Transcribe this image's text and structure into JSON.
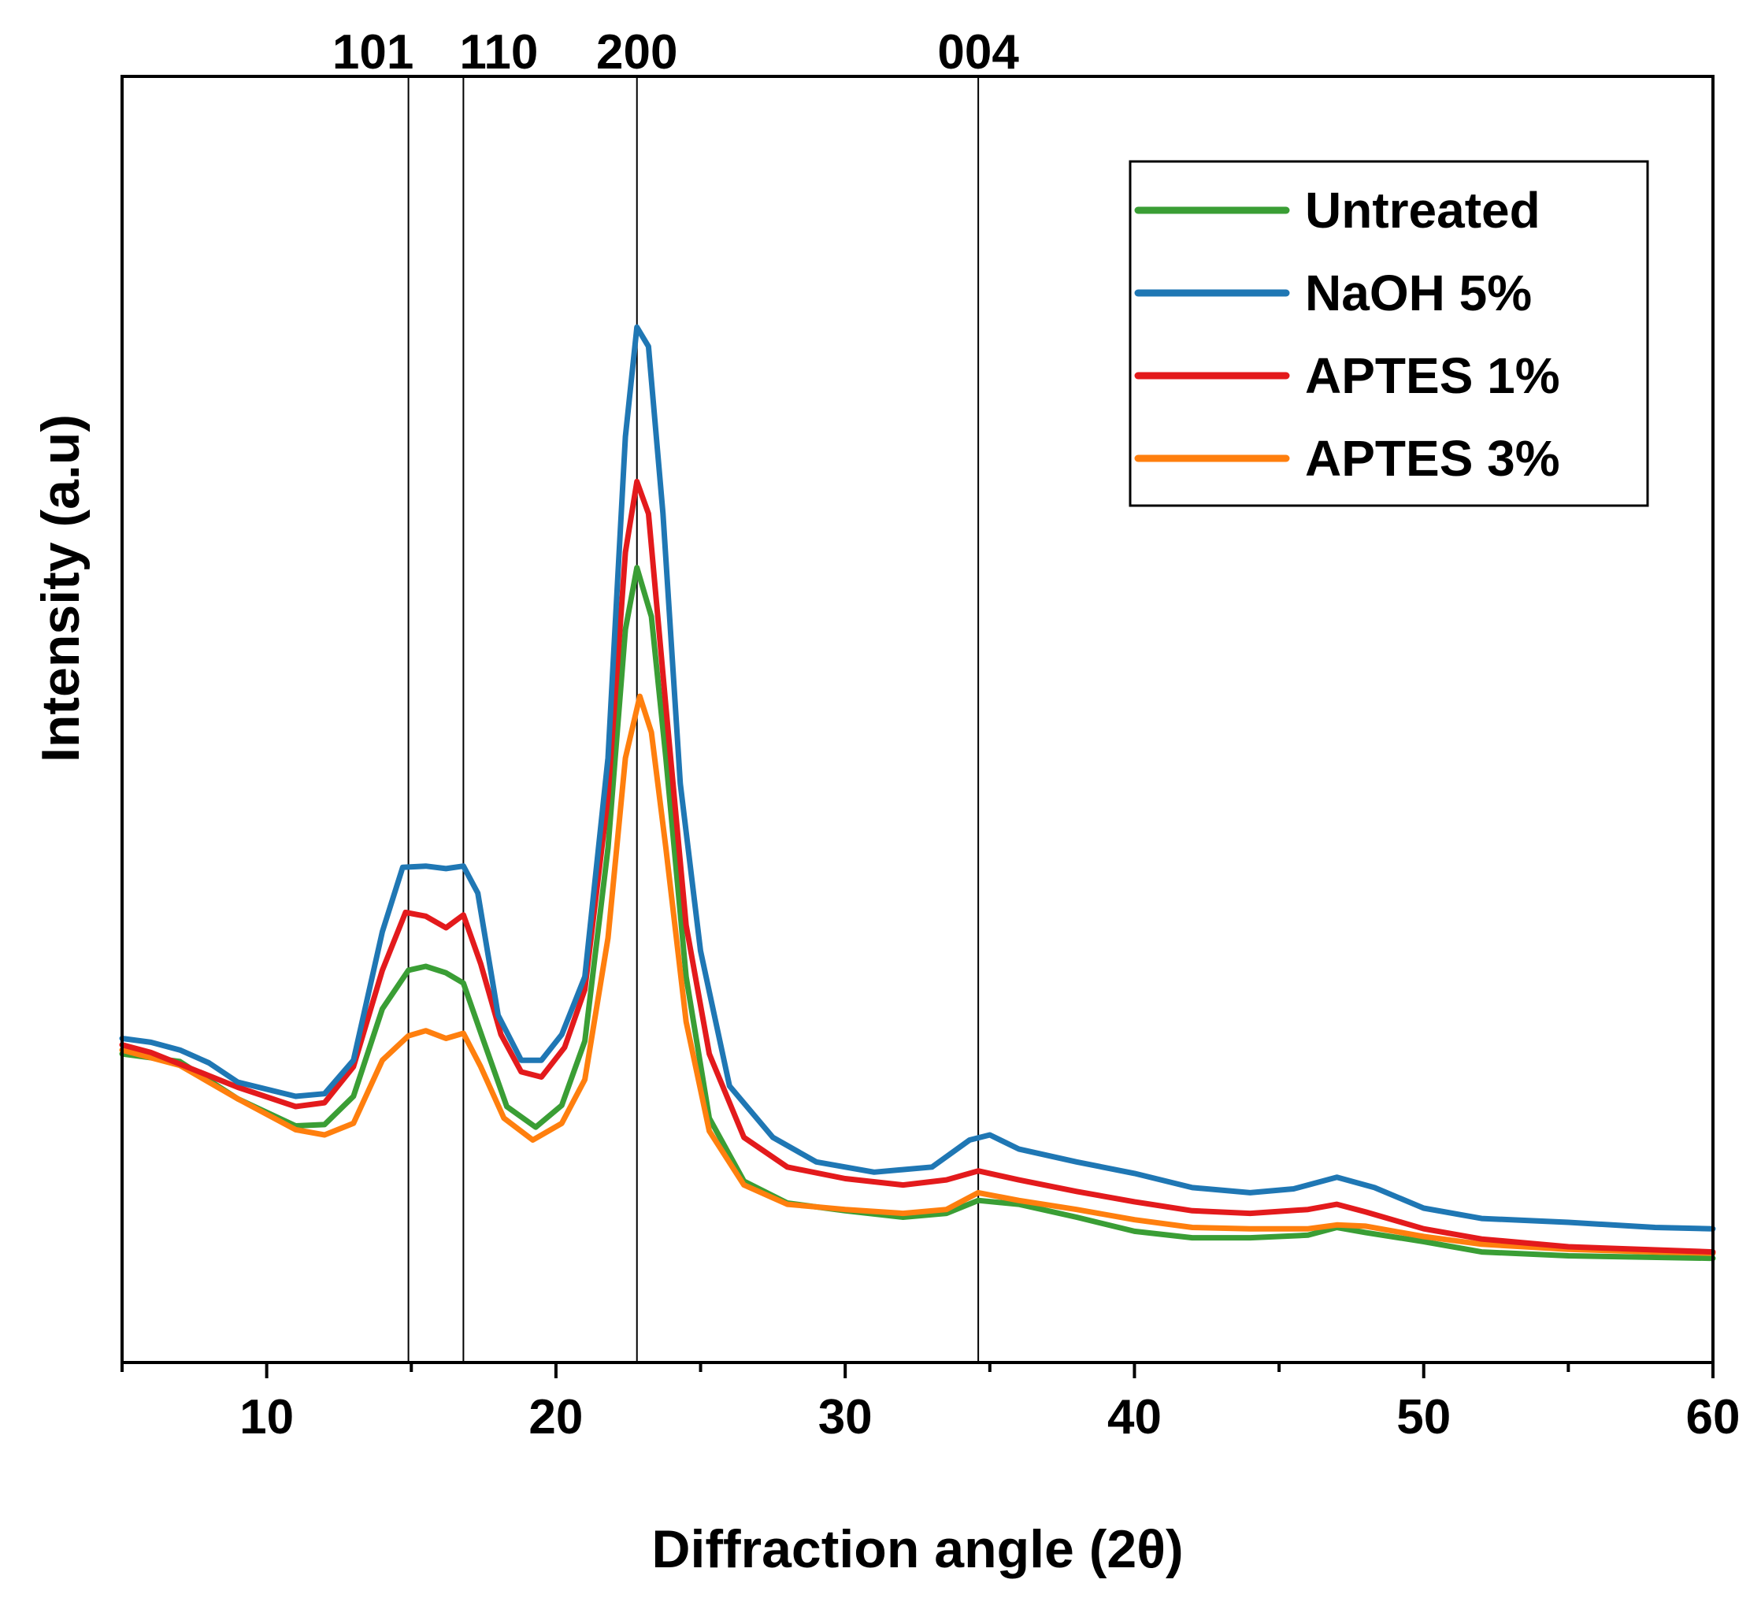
{
  "chart_data": {
    "type": "line",
    "title": "",
    "xlabel": "Diffraction angle (2θ)",
    "ylabel": "Intensity (a.u)",
    "xlim": [
      5,
      60
    ],
    "ylim": [
      0,
      100
    ],
    "x_ticks": [
      10,
      20,
      30,
      40,
      50,
      60
    ],
    "x_tick_labels": [
      "10",
      "20",
      "30",
      "40",
      "50",
      "60"
    ],
    "y_ticks_shown": false,
    "legend_position": "top-right",
    "reference_lines": [
      {
        "label": "101",
        "x": 14.9
      },
      {
        "label": "110",
        "x": 16.8
      },
      {
        "label": "200",
        "x": 22.8
      },
      {
        "label": "004",
        "x": 34.6
      }
    ],
    "series": [
      {
        "name": "Untreated",
        "color": "#3a9e35",
        "points": [
          [
            5,
            24
          ],
          [
            7,
            23.4
          ],
          [
            9,
            20.5
          ],
          [
            11,
            18.4
          ],
          [
            12,
            18.5
          ],
          [
            13,
            20.7
          ],
          [
            14,
            27.5
          ],
          [
            14.9,
            30.5
          ],
          [
            15.5,
            30.8
          ],
          [
            16.2,
            30.3
          ],
          [
            16.8,
            29.5
          ],
          [
            17.5,
            25
          ],
          [
            18.3,
            19.9
          ],
          [
            19.3,
            18.3
          ],
          [
            20.2,
            20
          ],
          [
            21,
            25
          ],
          [
            21.8,
            40
          ],
          [
            22.4,
            57
          ],
          [
            22.8,
            61.8
          ],
          [
            23.3,
            58
          ],
          [
            23.8,
            47
          ],
          [
            24.5,
            30
          ],
          [
            25.3,
            19
          ],
          [
            26.5,
            14.1
          ],
          [
            28,
            12.4
          ],
          [
            30,
            11.8
          ],
          [
            32,
            11.3
          ],
          [
            33.5,
            11.6
          ],
          [
            34.6,
            12.6
          ],
          [
            36,
            12.3
          ],
          [
            38,
            11.3
          ],
          [
            40,
            10.2
          ],
          [
            42,
            9.7
          ],
          [
            44,
            9.7
          ],
          [
            46,
            9.9
          ],
          [
            47,
            10.5
          ],
          [
            48,
            10.1
          ],
          [
            50,
            9.4
          ],
          [
            52,
            8.6
          ],
          [
            55,
            8.3
          ],
          [
            60,
            8.1
          ]
        ]
      },
      {
        "name": "NaOH 5%",
        "color": "#1f77b4",
        "points": [
          [
            5,
            25.2
          ],
          [
            6,
            24.9
          ],
          [
            7,
            24.3
          ],
          [
            8,
            23.3
          ],
          [
            9,
            21.8
          ],
          [
            11,
            20.7
          ],
          [
            12,
            20.9
          ],
          [
            13,
            23.5
          ],
          [
            14,
            33.5
          ],
          [
            14.7,
            38.5
          ],
          [
            15.5,
            38.6
          ],
          [
            16.2,
            38.4
          ],
          [
            16.8,
            38.6
          ],
          [
            17.3,
            36.5
          ],
          [
            18,
            27
          ],
          [
            18.8,
            23.5
          ],
          [
            19.5,
            23.5
          ],
          [
            20.2,
            25.5
          ],
          [
            21,
            30
          ],
          [
            21.8,
            47
          ],
          [
            22.4,
            72
          ],
          [
            22.8,
            80.5
          ],
          [
            23.2,
            79
          ],
          [
            23.7,
            66
          ],
          [
            24.3,
            45
          ],
          [
            25,
            32
          ],
          [
            26,
            21.5
          ],
          [
            27.5,
            17.5
          ],
          [
            29,
            15.6
          ],
          [
            31,
            14.8
          ],
          [
            33,
            15.2
          ],
          [
            34.3,
            17.3
          ],
          [
            35,
            17.7
          ],
          [
            36,
            16.6
          ],
          [
            38,
            15.6
          ],
          [
            40,
            14.7
          ],
          [
            42,
            13.6
          ],
          [
            44,
            13.2
          ],
          [
            45.5,
            13.5
          ],
          [
            47,
            14.4
          ],
          [
            48.3,
            13.6
          ],
          [
            50,
            12
          ],
          [
            52,
            11.2
          ],
          [
            55,
            10.9
          ],
          [
            58,
            10.5
          ],
          [
            60,
            10.4
          ]
        ]
      },
      {
        "name": "APTES 1%",
        "color": "#e31a1c",
        "points": [
          [
            5,
            24.7
          ],
          [
            6,
            24.1
          ],
          [
            7,
            23.2
          ],
          [
            9,
            21.4
          ],
          [
            11,
            19.9
          ],
          [
            12,
            20.2
          ],
          [
            13,
            23
          ],
          [
            14,
            30.5
          ],
          [
            14.8,
            35
          ],
          [
            15.5,
            34.7
          ],
          [
            16.2,
            33.8
          ],
          [
            16.8,
            34.8
          ],
          [
            17.4,
            31
          ],
          [
            18.1,
            25.5
          ],
          [
            18.8,
            22.6
          ],
          [
            19.5,
            22.2
          ],
          [
            20.3,
            24.5
          ],
          [
            21,
            29
          ],
          [
            21.8,
            44
          ],
          [
            22.4,
            63
          ],
          [
            22.8,
            68.5
          ],
          [
            23.2,
            66
          ],
          [
            23.8,
            51
          ],
          [
            24.5,
            34
          ],
          [
            25.3,
            24
          ],
          [
            26.5,
            17.5
          ],
          [
            28,
            15.2
          ],
          [
            30,
            14.3
          ],
          [
            32,
            13.8
          ],
          [
            33.5,
            14.2
          ],
          [
            34.6,
            14.9
          ],
          [
            36,
            14.2
          ],
          [
            38,
            13.3
          ],
          [
            40,
            12.5
          ],
          [
            42,
            11.8
          ],
          [
            44,
            11.6
          ],
          [
            46,
            11.9
          ],
          [
            47,
            12.3
          ],
          [
            48,
            11.7
          ],
          [
            50,
            10.4
          ],
          [
            52,
            9.6
          ],
          [
            55,
            9
          ],
          [
            60,
            8.6
          ]
        ]
      },
      {
        "name": "APTES 3%",
        "color": "#ff7f0e",
        "points": [
          [
            5,
            24.3
          ],
          [
            7,
            23.1
          ],
          [
            9,
            20.5
          ],
          [
            11,
            18.1
          ],
          [
            12,
            17.7
          ],
          [
            13,
            18.6
          ],
          [
            14,
            23.5
          ],
          [
            14.9,
            25.4
          ],
          [
            15.5,
            25.8
          ],
          [
            16.2,
            25.2
          ],
          [
            16.8,
            25.6
          ],
          [
            17.4,
            23
          ],
          [
            18.2,
            19
          ],
          [
            19.2,
            17.3
          ],
          [
            20.2,
            18.6
          ],
          [
            21,
            22
          ],
          [
            21.8,
            33
          ],
          [
            22.4,
            47
          ],
          [
            22.9,
            51.8
          ],
          [
            23.3,
            49
          ],
          [
            23.8,
            40
          ],
          [
            24.5,
            26.5
          ],
          [
            25.3,
            18
          ],
          [
            26.5,
            13.8
          ],
          [
            28,
            12.3
          ],
          [
            30,
            11.9
          ],
          [
            32,
            11.6
          ],
          [
            33.5,
            11.9
          ],
          [
            34.6,
            13.2
          ],
          [
            36,
            12.6
          ],
          [
            38,
            11.9
          ],
          [
            40,
            11.1
          ],
          [
            42,
            10.5
          ],
          [
            44,
            10.4
          ],
          [
            46,
            10.4
          ],
          [
            47,
            10.7
          ],
          [
            48,
            10.6
          ],
          [
            50,
            9.8
          ],
          [
            52,
            9.2
          ],
          [
            55,
            8.8
          ],
          [
            58,
            8.6
          ],
          [
            60,
            8.5
          ]
        ]
      }
    ]
  }
}
